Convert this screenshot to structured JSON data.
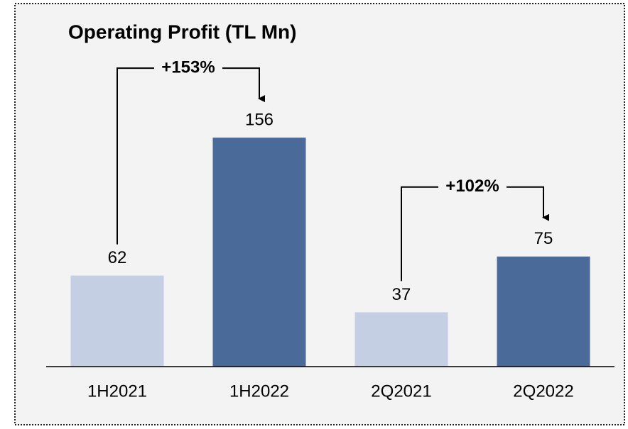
{
  "chart_data": {
    "type": "bar",
    "title": "Operating Profit (TL Mn)",
    "categories": [
      "1H2021",
      "1H2022",
      "2Q2021",
      "2Q2022"
    ],
    "values": [
      62,
      156,
      37,
      75
    ],
    "colors": [
      "#c5cfe3",
      "#4a6b9a",
      "#c5cfe3",
      "#4a6b9a"
    ],
    "annotations": [
      {
        "text": "+153%",
        "from": 0,
        "to": 1
      },
      {
        "text": "+102%",
        "from": 2,
        "to": 3
      }
    ]
  }
}
